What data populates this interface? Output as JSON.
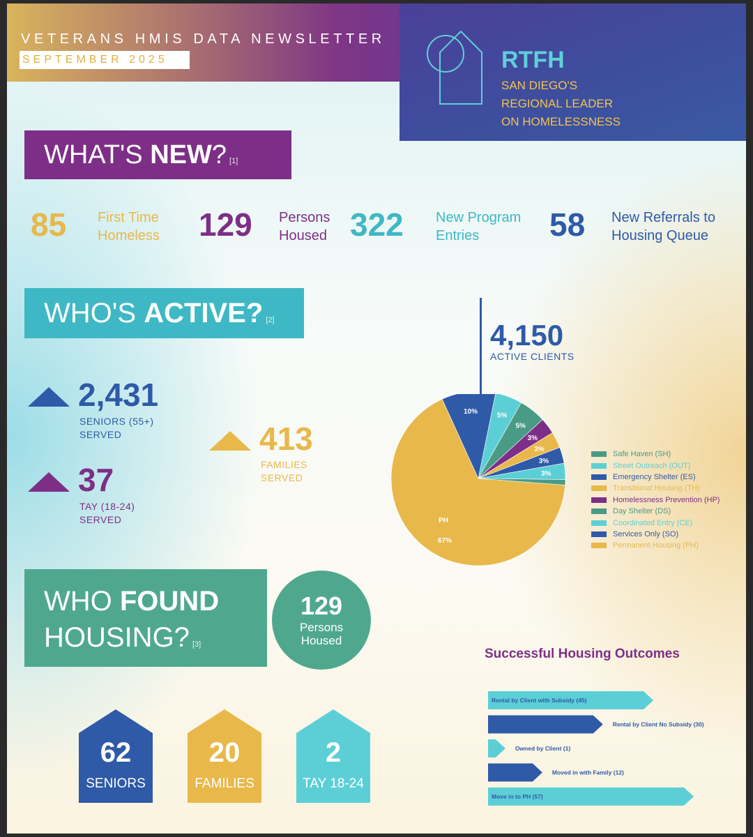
{
  "header": {
    "title": "VETERANS HMIS DATA NEWSLETTER",
    "date": "SEPTEMBER   2025",
    "org": "RTFH",
    "tagline": [
      "SAN DIEGO'S",
      "REGIONAL LEADER",
      "ON HOMELESSNESS"
    ]
  },
  "whats_new": {
    "title_light": "WHAT'S ",
    "title_bold": "NEW",
    "title_end": "?",
    "ref": "[1]",
    "stats": [
      {
        "value": "85",
        "label1": "First Time",
        "label2": "Homeless",
        "color": "#e8b84a"
      },
      {
        "value": "129",
        "label1": "Persons",
        "label2": "Housed",
        "color": "#7d2f87"
      },
      {
        "value": "322",
        "label1": "New Program",
        "label2": "Entries",
        "color": "#3eb8c4"
      },
      {
        "value": "58",
        "label1": "New Referrals to",
        "label2": "Housing Queue",
        "color": "#2f5aa8"
      }
    ]
  },
  "whos_active": {
    "title_light": "WHO'S ",
    "title_bold": "ACTIVE?",
    "ref": "[2]",
    "seniors": {
      "value": "2,431",
      "label1": "SENIORS (55+)",
      "label2": "SERVED"
    },
    "tay": {
      "value": "37",
      "label1": "TAY (18-24)",
      "label2": "SERVED"
    },
    "families": {
      "value": "413",
      "label1": "FAMILIES",
      "label2": "SERVED"
    },
    "total": "4,150",
    "total_label": "ACTIVE CLIENTS"
  },
  "chart_data": {
    "type": "pie",
    "slices": [
      {
        "name": "Permanent Housing (PH)",
        "value": 67,
        "label": "67%",
        "extra": "PH",
        "color": "#e8b84a"
      },
      {
        "name": "Services Only (SO)",
        "value": 10,
        "label": "10%",
        "color": "#2f5aa8"
      },
      {
        "name": "Coordinated Entry (CE)",
        "value": 5,
        "label": "5%",
        "color": "#5ccfd6"
      },
      {
        "name": "Day Shelter (DS)",
        "value": 5,
        "label": "5%",
        "color": "#4a9b86"
      },
      {
        "name": "Homelessness Prevention (HP)",
        "value": 3,
        "label": "3%",
        "color": "#7d2f87"
      },
      {
        "name": "Transitional Housing (TH)",
        "value": 3,
        "label": "3%",
        "color": "#e8b84a"
      },
      {
        "name": "Emergency Shelter (ES)",
        "value": 3,
        "label": "3%",
        "color": "#2f5aa8"
      },
      {
        "name": "Street Outreach (OUT)",
        "value": 3,
        "label": "3%",
        "color": "#5ccfd6"
      },
      {
        "name": "Safe Haven (SH)",
        "value": 1,
        "label": "",
        "color": "#4a9b86"
      }
    ],
    "legend": [
      {
        "name": "Safe Haven (SH)",
        "color": "#4a9b86"
      },
      {
        "name": "Street Outreach (OUT)",
        "color": "#5ccfd6"
      },
      {
        "name": "Emergency Shelter (ES)",
        "color": "#2f5aa8"
      },
      {
        "name": "Transitional Housing (TH)",
        "color": "#e8b84a"
      },
      {
        "name": "Homelessness Prevention (HP)",
        "color": "#7d2f87"
      },
      {
        "name": "Day Shelter (DS)",
        "color": "#4a9b86"
      },
      {
        "name": "Coordinated Entry (CE)",
        "color": "#5ccfd6"
      },
      {
        "name": "Services Only (SO)",
        "color": "#2f5aa8"
      },
      {
        "name": "Permanent Housing (PH)",
        "color": "#e8b84a"
      }
    ],
    "legend_placement": "right"
  },
  "who_found_housing": {
    "title_light1": "WHO ",
    "title_bold": "FOUND",
    "title_light2": "HOUSING?",
    "ref": "[3]",
    "persons_housed": {
      "value": "129",
      "label1": "Persons",
      "label2": "Housed"
    },
    "houses": [
      {
        "value": "62",
        "label": "SENIORS",
        "color": "#2f5aa8"
      },
      {
        "value": "20",
        "label": "FAMILIES",
        "color": "#e8b84a"
      },
      {
        "value": "2",
        "label": "TAY 18-24",
        "color": "#5ccfd6"
      }
    ]
  },
  "outcomes": {
    "title": "Successful Housing Outcomes",
    "bars": [
      {
        "label": "Rental by Client with Subsidy (45)",
        "value": 45,
        "color": "#5ccfd6",
        "text_color": "#2f5aa8"
      },
      {
        "label": "Rental by Client No Subsidy (30)",
        "value": 30,
        "color": "#2f5aa8",
        "text_color": "#2f5aa8"
      },
      {
        "label": "Owned by Client (1)",
        "value": 1,
        "color": "#5ccfd6",
        "text_color": "#2f5aa8"
      },
      {
        "label": "Moved in with Family (12)",
        "value": 12,
        "color": "#2f5aa8",
        "text_color": "#2f5aa8"
      },
      {
        "label": "Move in to PH (57)",
        "value": 57,
        "color": "#5ccfd6",
        "text_color": "#2f5aa8"
      }
    ]
  }
}
